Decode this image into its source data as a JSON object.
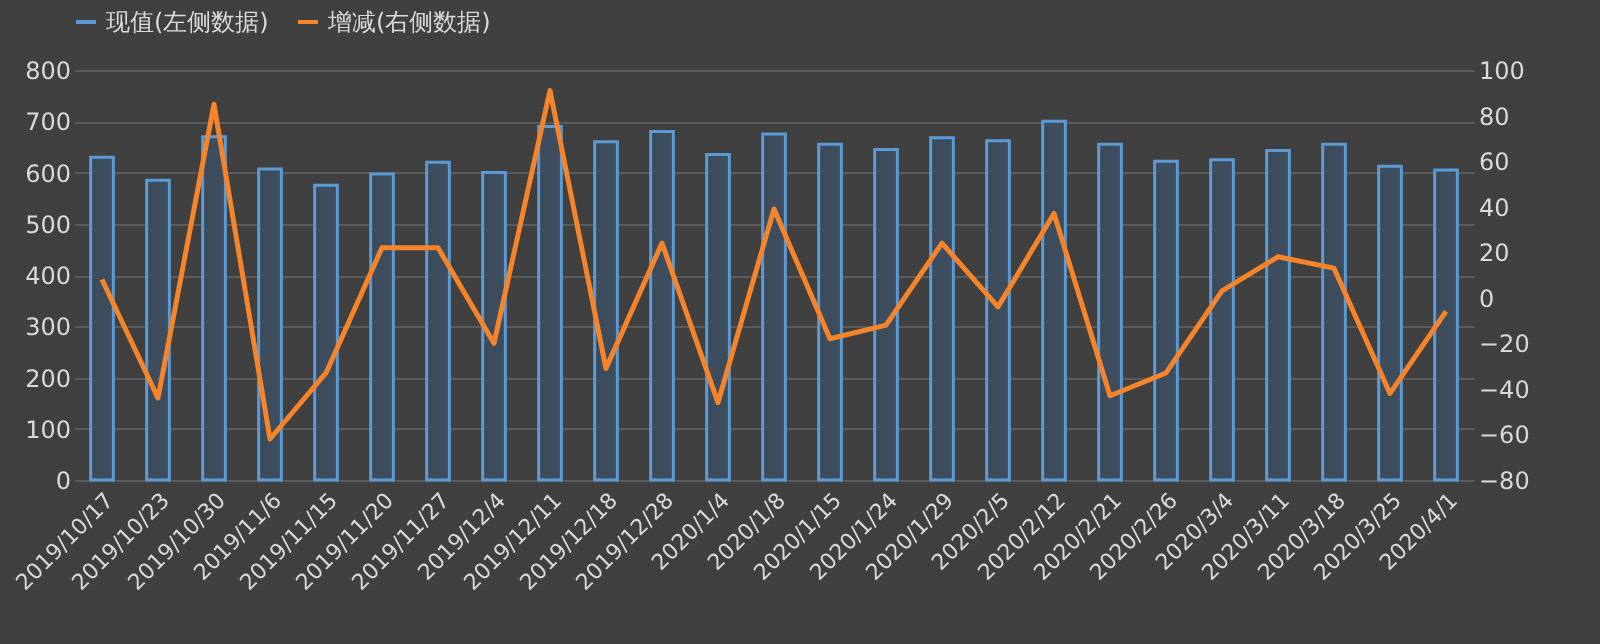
{
  "chart_data": {
    "type": "bar",
    "categories": [
      "2019/10/17",
      "2019/10/23",
      "2019/10/30",
      "2019/11/6",
      "2019/11/15",
      "2019/11/20",
      "2019/11/27",
      "2019/12/4",
      "2019/12/11",
      "2019/12/18",
      "2019/12/28",
      "2020/1/4",
      "2020/1/8",
      "2020/1/15",
      "2020/1/24",
      "2020/1/29",
      "2020/2/5",
      "2020/2/12",
      "2020/2/21",
      "2020/2/26",
      "2020/3/4",
      "2020/3/11",
      "2020/3/18",
      "2020/3/25",
      "2020/4/1"
    ],
    "series": [
      {
        "name": "现值(左侧数据)",
        "color": "#5b9bd5",
        "values": [
          630,
          585,
          670,
          607,
          575,
          597,
          620,
          600,
          690,
          660,
          680,
          635,
          675,
          655,
          645,
          668,
          662,
          700,
          655,
          622,
          625,
          643,
          655,
          612,
          605
        ]
      },
      {
        "name": "增减(右侧数据)",
        "type": "line",
        "axis": "y2",
        "color": "#f5842a",
        "values": [
          8,
          -44,
          85,
          -62,
          -33,
          22,
          22,
          -20,
          91,
          -31,
          24,
          -46,
          39,
          -18,
          -12,
          24,
          -4,
          37,
          -43,
          -33,
          3,
          18,
          13,
          -42,
          -6
        ]
      }
    ],
    "ylim": [
      0,
      800
    ],
    "yticks": [
      0,
      100,
      200,
      300,
      400,
      500,
      600,
      700,
      800
    ],
    "y2lim": [
      -80,
      100
    ],
    "y2ticks": [
      -80,
      -60,
      -40,
      -20,
      0,
      20,
      40,
      60,
      80,
      100
    ],
    "grid": "y",
    "legend": "top",
    "marker": "none",
    "line_style": "solid"
  }
}
